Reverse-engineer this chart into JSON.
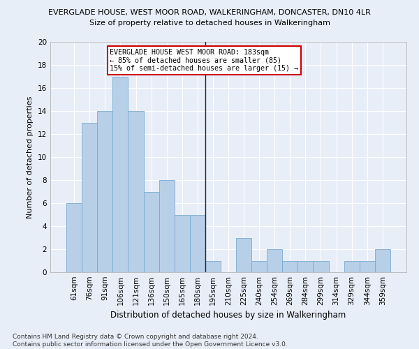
{
  "title": "EVERGLADE HOUSE, WEST MOOR ROAD, WALKERINGHAM, DONCASTER, DN10 4LR",
  "subtitle": "Size of property relative to detached houses in Walkeringham",
  "xlabel": "Distribution of detached houses by size in Walkeringham",
  "ylabel": "Number of detached properties",
  "categories": [
    "61sqm",
    "76sqm",
    "91sqm",
    "106sqm",
    "121sqm",
    "136sqm",
    "150sqm",
    "165sqm",
    "180sqm",
    "195sqm",
    "210sqm",
    "225sqm",
    "240sqm",
    "254sqm",
    "269sqm",
    "284sqm",
    "299sqm",
    "314sqm",
    "329sqm",
    "344sqm",
    "359sqm"
  ],
  "values": [
    6,
    13,
    14,
    17,
    14,
    7,
    8,
    5,
    5,
    1,
    0,
    3,
    1,
    2,
    1,
    1,
    1,
    0,
    1,
    1,
    2
  ],
  "bar_color": "#b8cfe8",
  "bar_edge_color": "#7aaad0",
  "vline_color": "#222222",
  "annotation_text": "EVERGLADE HOUSE WEST MOOR ROAD: 183sqm\n← 85% of detached houses are smaller (85)\n15% of semi-detached houses are larger (15) →",
  "annotation_box_color": "#ffffff",
  "annotation_box_edge": "#cc0000",
  "ylim": [
    0,
    20
  ],
  "yticks": [
    0,
    2,
    4,
    6,
    8,
    10,
    12,
    14,
    16,
    18,
    20
  ],
  "footnote": "Contains HM Land Registry data © Crown copyright and database right 2024.\nContains public sector information licensed under the Open Government Licence v3.0.",
  "bg_color": "#e8eef8",
  "grid_color": "#ffffff",
  "title_fontsize": 8.0,
  "subtitle_fontsize": 8.0,
  "xlabel_fontsize": 8.5,
  "ylabel_fontsize": 8.0,
  "tick_fontsize": 7.5,
  "footnote_fontsize": 6.5
}
